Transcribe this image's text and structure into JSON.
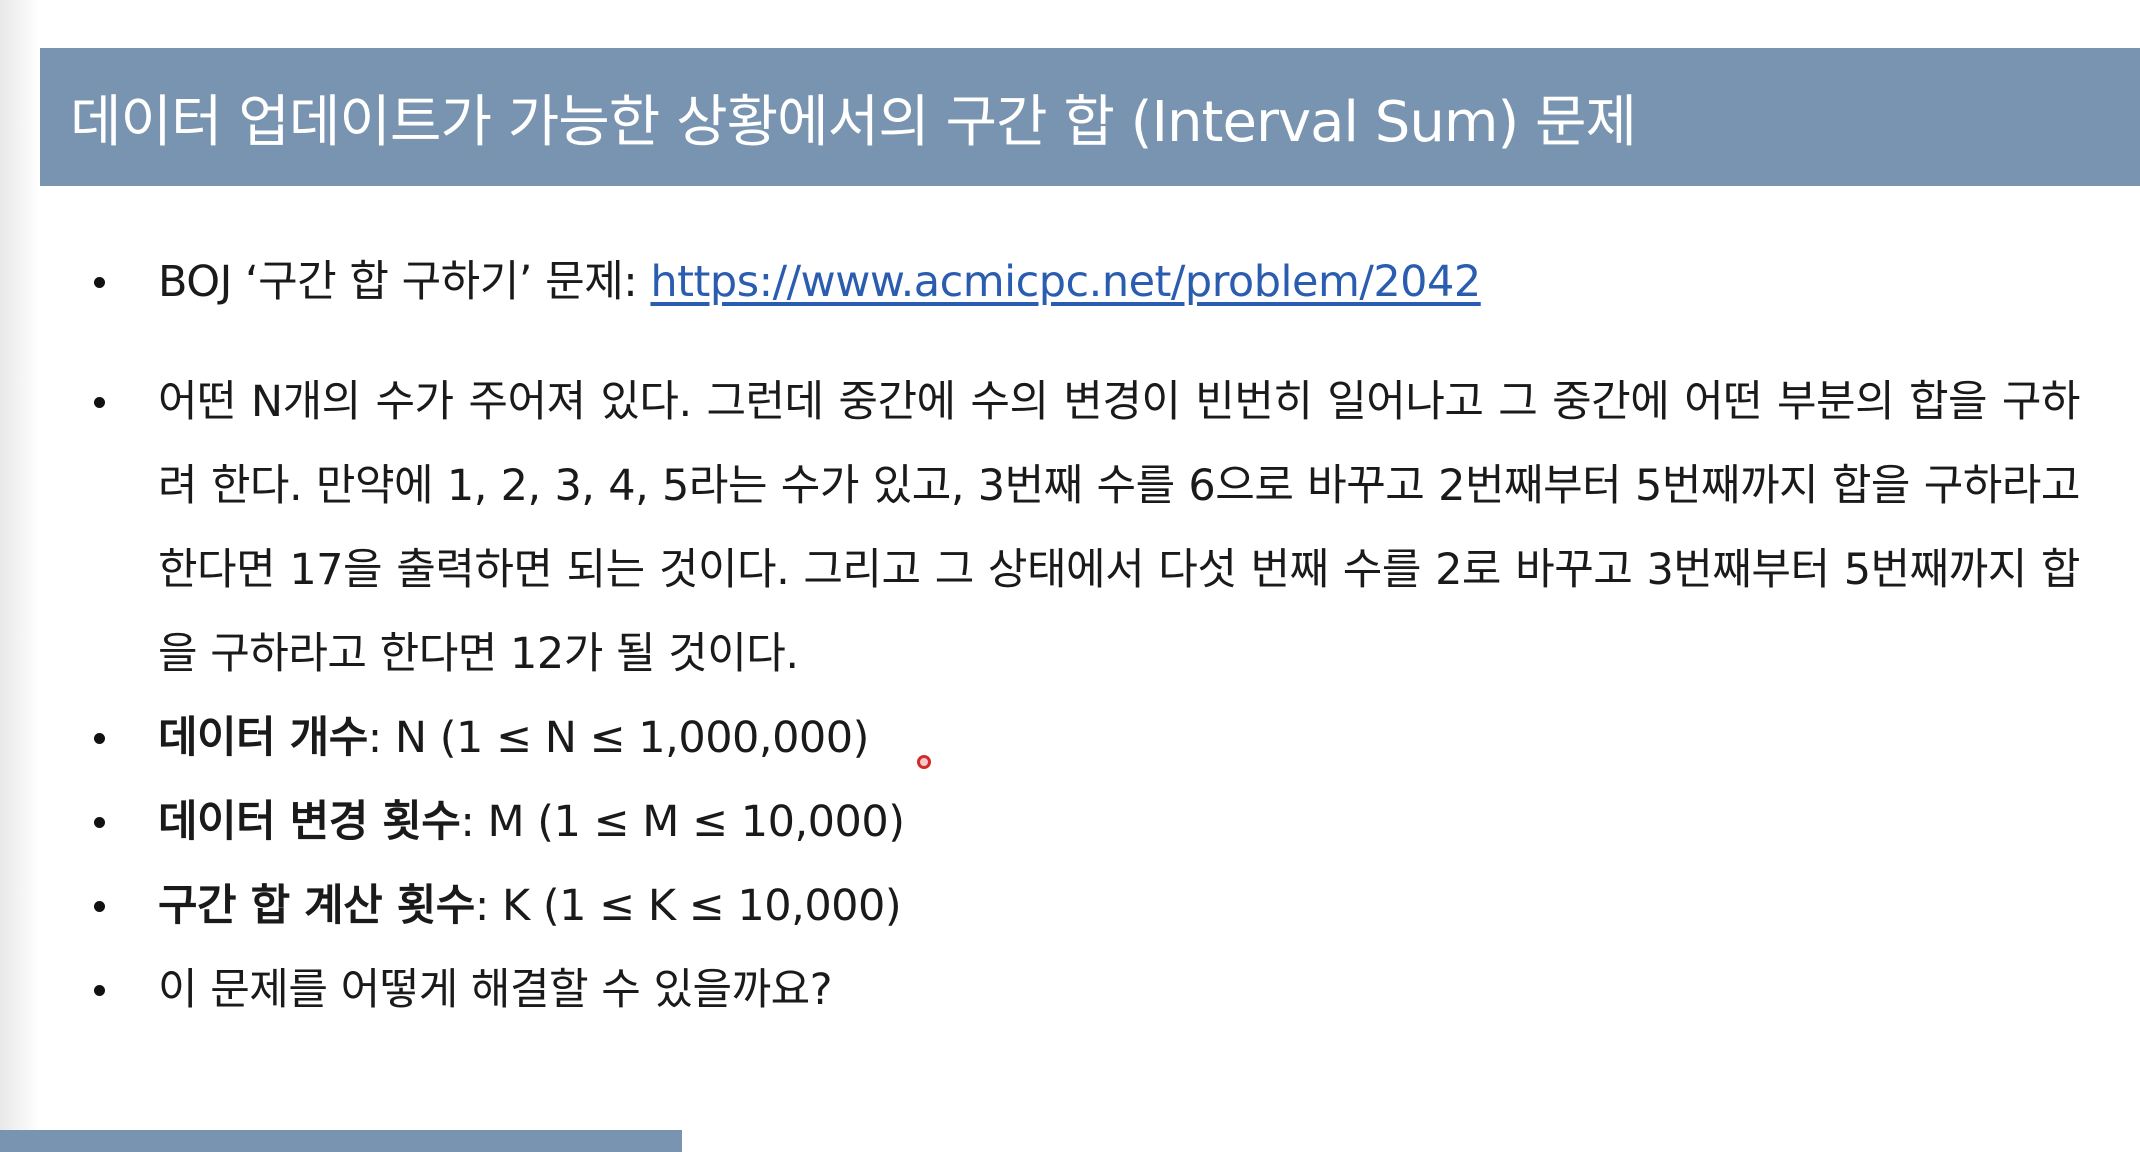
{
  "slide": {
    "title": "데이터 업데이트가 가능한 상황에서의 구간 합 (Interval Sum) 문제",
    "accent_color": "#7894b0",
    "link_color": "#2a5db0"
  },
  "bullets": {
    "boj": {
      "label": "BOJ ‘구간 합 구하기’ 문제: ",
      "link": "https://www.acmicpc.net/problem/2042"
    },
    "description": "어떤 N개의 수가 주어져 있다. 그런데 중간에 수의 변경이 빈번히 일어나고 그 중간에 어떤 부분의 합을 구하려 한다. 만약에 1, 2, 3, 4, 5라는 수가 있고, 3번째 수를 6으로 바꾸고 2번째부터 5번째까지 합을 구하라고 한다면 17을 출력하면 되는 것이다. 그리고 그 상태에서 다섯 번째 수를 2로 바꾸고 3번째부터 5번째까지 합을 구하라고 한다면 12가 될 것이다.",
    "data_count": {
      "label": "데이터 개수",
      "value": ": N (1 ≤ N ≤ 1,000,000)"
    },
    "update_count": {
      "label": "데이터 변경 횟수",
      "value": ": M (1 ≤ M ≤ 10,000)"
    },
    "query_count": {
      "label": "구간 합 계산 횟수",
      "value": ": K (1 ≤ K ≤ 10,000)"
    },
    "question": "이 문제를 어떻게 해결할 수 있을까요?"
  }
}
